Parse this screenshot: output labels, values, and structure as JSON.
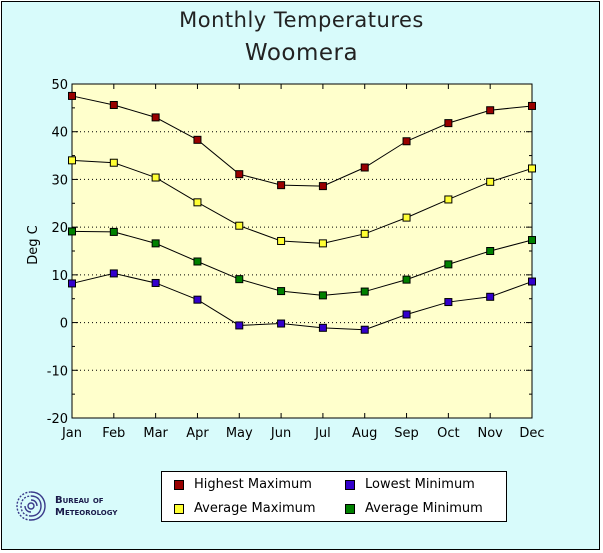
{
  "chart_data": {
    "type": "line",
    "title": "Monthly Temperatures",
    "subtitle": "Woomera",
    "xlabel": "",
    "ylabel": "Deg C",
    "categories": [
      "Jan",
      "Feb",
      "Mar",
      "Apr",
      "May",
      "Jun",
      "Jul",
      "Aug",
      "Sep",
      "Oct",
      "Nov",
      "Dec"
    ],
    "ylim": [
      -20,
      50
    ],
    "yticks": [
      -20,
      -10,
      0,
      10,
      20,
      30,
      40,
      50
    ],
    "grid": true,
    "legend_position": "bottom",
    "series": [
      {
        "name": "Highest Maximum",
        "color": "#990000",
        "values": [
          47.5,
          45.6,
          43.0,
          38.3,
          31.1,
          28.8,
          28.6,
          32.5,
          38.0,
          41.8,
          44.5,
          45.4
        ]
      },
      {
        "name": "Average Maximum",
        "color": "#ffff33",
        "values": [
          34.0,
          33.5,
          30.4,
          25.2,
          20.3,
          17.1,
          16.6,
          18.6,
          22.0,
          25.8,
          29.5,
          32.3
        ]
      },
      {
        "name": "Average Minimum",
        "color": "#008000",
        "values": [
          19.1,
          19.0,
          16.6,
          12.8,
          9.1,
          6.6,
          5.7,
          6.5,
          9.0,
          12.2,
          15.0,
          17.3
        ]
      },
      {
        "name": "Lowest Minimum",
        "color": "#3300cc",
        "values": [
          8.2,
          10.3,
          8.3,
          4.8,
          -0.6,
          -0.2,
          -1.1,
          -1.5,
          1.7,
          4.3,
          5.4,
          8.6
        ]
      }
    ],
    "colors": {
      "plot_background": "#ffffcc",
      "page_background": "#d8fbfb"
    }
  },
  "legend": {
    "items": [
      {
        "label": "Highest Maximum",
        "color": "#990000"
      },
      {
        "label": "Lowest Minimum",
        "color": "#3300cc"
      },
      {
        "label": "Average Maximum",
        "color": "#ffff33"
      },
      {
        "label": "Average Minimum",
        "color": "#008000"
      }
    ]
  },
  "logo": {
    "line1": "Bureau of",
    "line2": "Meteorology",
    "icon": "bom-swirl-icon"
  }
}
